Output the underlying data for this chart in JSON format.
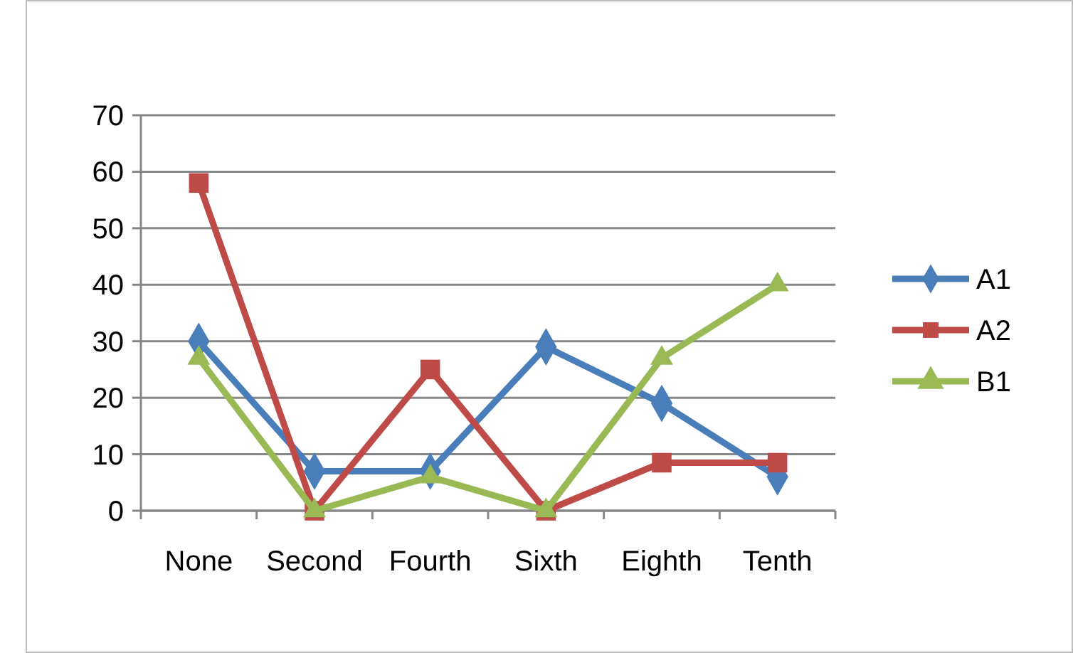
{
  "chart_data": {
    "type": "line",
    "categories": [
      "None",
      "Second",
      "Fourth",
      "Sixth",
      "Eighth",
      "Tenth"
    ],
    "series": [
      {
        "name": "A1",
        "color": "#4a7ebb",
        "marker": "diamond",
        "values": [
          30,
          7,
          7,
          29,
          19,
          6
        ]
      },
      {
        "name": "A2",
        "color": "#be4b48",
        "marker": "square",
        "values": [
          58,
          0,
          25,
          0,
          8.5,
          8.5
        ]
      },
      {
        "name": "B1",
        "color": "#98b954",
        "marker": "triangle",
        "values": [
          27,
          0,
          6,
          0,
          27,
          40
        ]
      }
    ],
    "ylim": [
      0,
      70
    ],
    "yticks": [
      0,
      10,
      20,
      30,
      40,
      50,
      60,
      70
    ],
    "grid": "y",
    "legend": "right",
    "line_style": "solid"
  }
}
